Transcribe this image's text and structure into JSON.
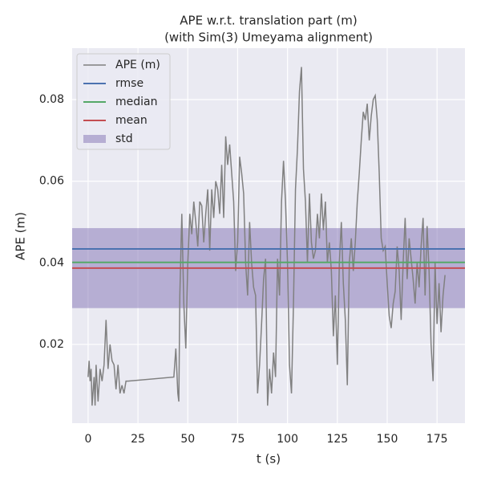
{
  "chart_data": {
    "type": "line",
    "title": "APE w.r.t. translation part (m)",
    "subtitle": "(with Sim(3) Umeyama alignment)",
    "xlabel": "t (s)",
    "ylabel": "APE (m)",
    "xlim": [
      -8,
      189
    ],
    "ylim": [
      0.0007,
      0.0926
    ],
    "xticks": [
      0,
      25,
      50,
      75,
      100,
      125,
      150,
      175
    ],
    "yticks": [
      0.02,
      0.04,
      0.06,
      0.08
    ],
    "grid": true,
    "legend": "upper left",
    "series": [
      {
        "name": "APE (m)",
        "color": "#808080",
        "x": [
          0,
          0.5,
          1,
          1.5,
          2,
          3,
          3.5,
          4,
          5,
          6,
          7,
          8,
          9,
          10,
          11,
          12,
          13,
          14,
          15,
          16,
          17,
          18,
          19,
          20,
          43,
          44,
          45,
          45.5,
          46,
          47,
          48,
          49,
          50,
          51,
          52,
          53,
          54,
          55,
          56,
          57,
          58,
          59,
          60,
          61,
          62,
          63,
          64,
          65,
          66,
          67,
          68,
          69,
          70,
          71,
          72,
          73,
          74,
          75,
          76,
          77,
          78,
          79,
          80,
          81,
          82,
          83,
          84,
          85,
          86,
          87,
          88,
          89,
          90,
          91,
          92,
          93,
          94,
          95,
          96,
          97,
          98,
          99,
          100,
          101,
          102,
          103,
          104,
          105,
          106,
          107,
          108,
          109,
          110,
          111,
          112,
          113,
          114,
          115,
          116,
          117,
          118,
          119,
          120,
          121,
          122,
          123,
          124,
          125,
          126,
          127,
          128,
          129,
          130,
          131,
          132,
          133,
          134,
          135,
          136,
          137,
          138,
          139,
          140,
          141,
          142,
          143,
          144,
          145,
          146,
          147,
          148,
          149,
          150,
          151,
          152,
          153,
          154,
          155,
          156,
          157,
          158,
          159,
          160,
          161,
          162,
          163,
          164,
          165,
          166,
          167,
          168,
          169,
          170,
          171,
          172,
          173,
          174,
          175,
          176,
          177,
          178,
          179
        ],
        "values": [
          0.012,
          0.016,
          0.011,
          0.014,
          0.005,
          0.012,
          0.005,
          0.015,
          0.006,
          0.014,
          0.011,
          0.015,
          0.026,
          0.014,
          0.02,
          0.016,
          0.015,
          0.009,
          0.015,
          0.008,
          0.01,
          0.008,
          0.011,
          0.011,
          0.012,
          0.019,
          0.008,
          0.006,
          0.032,
          0.052,
          0.03,
          0.019,
          0.04,
          0.052,
          0.047,
          0.055,
          0.05,
          0.044,
          0.055,
          0.054,
          0.045,
          0.052,
          0.058,
          0.043,
          0.058,
          0.051,
          0.06,
          0.058,
          0.052,
          0.064,
          0.051,
          0.071,
          0.064,
          0.069,
          0.062,
          0.055,
          0.038,
          0.045,
          0.066,
          0.062,
          0.057,
          0.04,
          0.032,
          0.05,
          0.04,
          0.034,
          0.032,
          0.008,
          0.015,
          0.025,
          0.036,
          0.041,
          0.005,
          0.014,
          0.008,
          0.018,
          0.012,
          0.041,
          0.032,
          0.055,
          0.065,
          0.055,
          0.04,
          0.015,
          0.008,
          0.03,
          0.058,
          0.068,
          0.082,
          0.088,
          0.063,
          0.055,
          0.04,
          0.057,
          0.045,
          0.041,
          0.043,
          0.052,
          0.046,
          0.057,
          0.048,
          0.055,
          0.04,
          0.045,
          0.038,
          0.022,
          0.032,
          0.015,
          0.04,
          0.05,
          0.035,
          0.026,
          0.01,
          0.04,
          0.046,
          0.038,
          0.045,
          0.055,
          0.062,
          0.07,
          0.077,
          0.075,
          0.079,
          0.07,
          0.076,
          0.08,
          0.081,
          0.075,
          0.062,
          0.046,
          0.043,
          0.044,
          0.035,
          0.027,
          0.024,
          0.03,
          0.033,
          0.044,
          0.038,
          0.026,
          0.04,
          0.051,
          0.036,
          0.046,
          0.041,
          0.036,
          0.03,
          0.04,
          0.034,
          0.044,
          0.051,
          0.032,
          0.049,
          0.038,
          0.02,
          0.011,
          0.04,
          0.025,
          0.035,
          0.023,
          0.032,
          0.037
        ]
      }
    ],
    "stats": [
      {
        "name": "rmse",
        "color": "#4c72b0",
        "value": 0.0434
      },
      {
        "name": "median",
        "color": "#55a868",
        "value": 0.0401
      },
      {
        "name": "mean",
        "color": "#c44e52",
        "value": 0.0387
      }
    ],
    "std": {
      "name": "std",
      "color": "#8172b3",
      "value": 0.0098
    }
  }
}
